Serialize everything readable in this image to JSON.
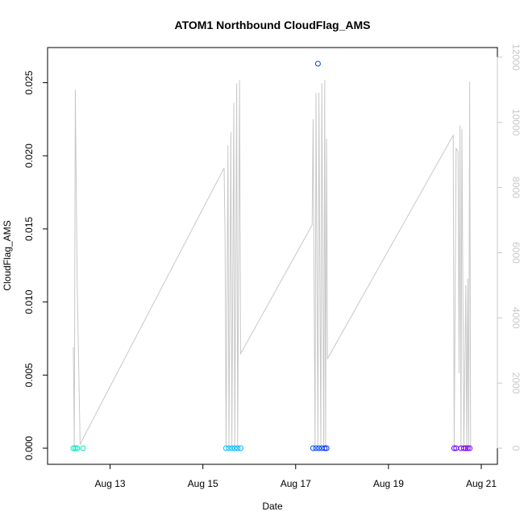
{
  "chart_data": {
    "type": "scatter",
    "title": "ATOM1 Northbound CloudFlag_AMS",
    "xlabel": "Date",
    "ylabel": "CloudFlag_AMS",
    "xlim": [
      "2021-08-12",
      "2021-08-21"
    ],
    "ylim": [
      0,
      0.0263
    ],
    "y_ticks": [
      0.0,
      0.005,
      0.01,
      0.015,
      0.02,
      0.025
    ],
    "y_tick_labels": [
      "0.000",
      "0.005",
      "0.010",
      "0.015",
      "0.020",
      "0.025"
    ],
    "x_ticks": [
      "2021-08-13",
      "2021-08-15",
      "2021-08-17",
      "2021-08-19",
      "2021-08-21"
    ],
    "x_tick_labels": [
      "Aug 13",
      "Aug 15",
      "Aug 17",
      "Aug 19",
      "Aug 21"
    ],
    "secondary_ylim": [
      0,
      11800
    ],
    "secondary_y_ticks": [
      0,
      2000,
      4000,
      6000,
      8000,
      10000,
      12000
    ],
    "secondary_y_tick_labels": [
      "0",
      "2000",
      "4000",
      "6000",
      "8000",
      "10000",
      "12000"
    ],
    "grid": false,
    "legend": "none",
    "colors": {
      "secondary_series": "#c8c8c8",
      "secondary_axis": "#c8c8c8",
      "axis": "#000000"
    },
    "points": [
      {
        "x": "2021-08-12 05:00",
        "y": 0.0,
        "color": "#00e5c0"
      },
      {
        "x": "2021-08-12 06:00",
        "y": 0.0,
        "color": "#00e5c0"
      },
      {
        "x": "2021-08-12 07:00",
        "y": 0.0,
        "color": "#00e5c0"
      },
      {
        "x": "2021-08-12 10:00",
        "y": 0.0,
        "color": "#00e8b0"
      },
      {
        "x": "2021-08-15 12:00",
        "y": 0.0,
        "color": "#00c8ff"
      },
      {
        "x": "2021-08-15 13:30",
        "y": 0.0,
        "color": "#00c8ff"
      },
      {
        "x": "2021-08-15 15:00",
        "y": 0.0,
        "color": "#00c0ff"
      },
      {
        "x": "2021-08-15 16:30",
        "y": 0.0,
        "color": "#00bcff"
      },
      {
        "x": "2021-08-15 18:00",
        "y": 0.0,
        "color": "#00b4ff"
      },
      {
        "x": "2021-08-15 19:30",
        "y": 0.0,
        "color": "#00b0ff"
      },
      {
        "x": "2021-08-17 09:00",
        "y": 0.0,
        "color": "#0050ff"
      },
      {
        "x": "2021-08-17 10:30",
        "y": 0.0,
        "color": "#0048ff"
      },
      {
        "x": "2021-08-17 11:30",
        "y": 0.0263,
        "color": "#0040ff"
      },
      {
        "x": "2021-08-17 12:00",
        "y": 0.0,
        "color": "#0040ff"
      },
      {
        "x": "2021-08-17 13:30",
        "y": 0.0,
        "color": "#003cff"
      },
      {
        "x": "2021-08-17 15:00",
        "y": 0.0,
        "color": "#0034ff"
      },
      {
        "x": "2021-08-17 16:00",
        "y": 0.0,
        "color": "#0030ff"
      },
      {
        "x": "2021-08-20 10:00",
        "y": 0.0,
        "color": "#7000ff"
      },
      {
        "x": "2021-08-20 11:00",
        "y": 0.0,
        "color": "#7400ff"
      },
      {
        "x": "2021-08-20 13:30",
        "y": 0.0,
        "color": "#7800ff"
      },
      {
        "x": "2021-08-20 15:00",
        "y": 0.0,
        "color": "#7c00ff"
      },
      {
        "x": "2021-08-20 16:00",
        "y": 0.0,
        "color": "#8000ff"
      },
      {
        "x": "2021-08-20 17:00",
        "y": 0.0,
        "color": "#8000ff"
      },
      {
        "x": "2021-08-20 18:00",
        "y": 0.0,
        "color": "#8400ff"
      }
    ],
    "secondary_series": {
      "axis": "right",
      "x": [
        "2021-08-12 05:00",
        "2021-08-12 05:30",
        "2021-08-12 06:00",
        "2021-08-12 07:00",
        "2021-08-12 08:30",
        "2021-08-12 10:00",
        "2021-08-15 11:00",
        "2021-08-15 11:30",
        "2021-08-15 12:00",
        "2021-08-15 13:00",
        "2021-08-15 13:30",
        "2021-08-15 14:30",
        "2021-08-15 15:00",
        "2021-08-15 16:00",
        "2021-08-15 16:30",
        "2021-08-15 17:30",
        "2021-08-15 18:00",
        "2021-08-15 19:00",
        "2021-08-15 19:30",
        "2021-08-15 20:00",
        "2021-08-17 08:30",
        "2021-08-17 09:00",
        "2021-08-17 10:00",
        "2021-08-17 10:30",
        "2021-08-17 11:30",
        "2021-08-17 12:00",
        "2021-08-17 13:00",
        "2021-08-17 13:30",
        "2021-08-17 14:30",
        "2021-08-17 15:00",
        "2021-08-17 15:30",
        "2021-08-17 16:00",
        "2021-08-17 16:30",
        "2021-08-20 09:30",
        "2021-08-20 10:00",
        "2021-08-20 11:00",
        "2021-08-20 12:00",
        "2021-08-20 12:30",
        "2021-08-20 13:00",
        "2021-08-20 13:30",
        "2021-08-20 14:00",
        "2021-08-20 15:00",
        "2021-08-20 16:00",
        "2021-08-20 16:30",
        "2021-08-20 17:00",
        "2021-08-20 17:30",
        "2021-08-20 18:00",
        "2021-08-20 18:30"
      ],
      "values": [
        3100,
        50,
        11000,
        5000,
        100,
        300,
        8600,
        6400,
        0,
        9300,
        0,
        9700,
        0,
        10600,
        0,
        11200,
        0,
        11300,
        2900,
        2950,
        6850,
        10100,
        0,
        10900,
        0,
        10900,
        0,
        11200,
        0,
        11300,
        0,
        9500,
        2750,
        9600,
        0,
        9200,
        9100,
        2300,
        9900,
        0,
        9800,
        0,
        5000,
        0,
        5200,
        0,
        11250,
        0
      ]
    }
  }
}
